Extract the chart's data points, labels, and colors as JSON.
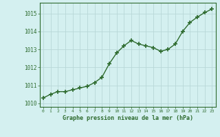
{
  "x": [
    0,
    1,
    2,
    3,
    4,
    5,
    6,
    7,
    8,
    9,
    10,
    11,
    12,
    13,
    14,
    15,
    16,
    17,
    18,
    19,
    20,
    21,
    22,
    23
  ],
  "y": [
    1010.3,
    1010.5,
    1010.65,
    1010.65,
    1010.75,
    1010.85,
    1010.95,
    1011.15,
    1011.45,
    1012.2,
    1012.8,
    1013.2,
    1013.5,
    1013.3,
    1013.2,
    1013.1,
    1012.9,
    1013.0,
    1013.3,
    1014.0,
    1014.5,
    1014.8,
    1015.05,
    1015.25
  ],
  "line_color": "#2d6a2d",
  "marker": "+",
  "marker_size": 5,
  "marker_lw": 1.2,
  "line_width": 1.0,
  "background_color": "#d4f0f0",
  "grid_color": "#b8d8d8",
  "xlabel": "Graphe pression niveau de la mer (hPa)",
  "xlabel_color": "#2d6a2d",
  "tick_color": "#2d6a2d",
  "ylim": [
    1009.8,
    1015.6
  ],
  "yticks": [
    1010,
    1011,
    1012,
    1013,
    1014,
    1015
  ],
  "xlim": [
    -0.5,
    23.5
  ],
  "xticks": [
    0,
    1,
    2,
    3,
    4,
    5,
    6,
    7,
    8,
    9,
    10,
    11,
    12,
    13,
    14,
    15,
    16,
    17,
    18,
    19,
    20,
    21,
    22,
    23
  ]
}
